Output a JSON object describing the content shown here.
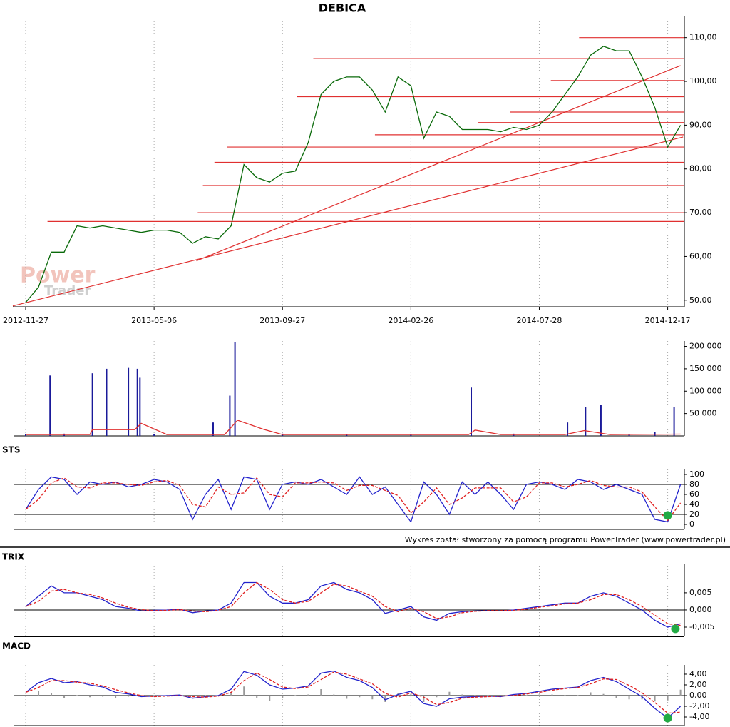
{
  "footer": "Wykres został stworzony za pomocą programu PowerTrader (www.powertrader.pl)",
  "watermark": [
    "Power",
    "Trader"
  ],
  "chart_data": [
    {
      "type": "line",
      "title": "DEBICA",
      "x": [
        0,
        10,
        20,
        30,
        40,
        50,
        60,
        70,
        80,
        90,
        100,
        110,
        120,
        130,
        140,
        150,
        160,
        170,
        180,
        190,
        200,
        210,
        220,
        230,
        240,
        250,
        260,
        270,
        280,
        290,
        300,
        310,
        320,
        330,
        340,
        350,
        360,
        370,
        380,
        390,
        400,
        410,
        420,
        430,
        440,
        450,
        460,
        470,
        480,
        490,
        500,
        510
      ],
      "xlim": [
        -10,
        513
      ],
      "xticks": [
        {
          "value": 0,
          "label": "2012-11-27"
        },
        {
          "value": 100,
          "label": "2013-05-06"
        },
        {
          "value": 200,
          "label": "2013-09-27"
        },
        {
          "value": 300,
          "label": "2014-02-26"
        },
        {
          "value": 400,
          "label": "2014-07-28"
        },
        {
          "value": 500,
          "label": "2014-12-17"
        }
      ],
      "ylim": [
        48.5,
        115
      ],
      "yticks": [
        {
          "value": 50,
          "label": "50,00"
        },
        {
          "value": 60,
          "label": "60,00"
        },
        {
          "value": 70,
          "label": "70,00"
        },
        {
          "value": 80,
          "label": "80,00"
        },
        {
          "value": 90,
          "label": "90,00"
        },
        {
          "value": 100,
          "label": "100,00"
        },
        {
          "value": 110,
          "label": "110,00"
        }
      ],
      "grid": true,
      "series": [
        {
          "color": "#0a6a0a",
          "values": [
            49.5,
            53,
            61,
            61,
            67,
            66.5,
            67,
            66.5,
            66,
            65.5,
            66,
            66,
            65.5,
            63,
            64.5,
            64,
            67,
            81,
            78,
            77,
            79,
            79.5,
            86,
            97,
            100,
            101,
            101,
            98,
            93,
            101,
            99,
            87,
            93,
            92,
            89,
            89,
            89,
            88.5,
            89.5,
            89,
            90,
            93,
            97,
            101,
            106,
            108,
            107,
            107,
            101,
            94,
            85,
            90
          ]
        }
      ],
      "level_color": "#e03030",
      "levels": [
        {
          "y": 110,
          "x": 431
        },
        {
          "y": 105.2,
          "x": 224
        },
        {
          "y": 100.2,
          "x": 409
        },
        {
          "y": 96.5,
          "x": 211
        },
        {
          "y": 93,
          "x": 377
        },
        {
          "y": 90.6,
          "x": 352
        },
        {
          "y": 87.8,
          "x": 272
        },
        {
          "y": 85,
          "x": 157
        },
        {
          "y": 81.5,
          "x": 147
        },
        {
          "y": 76.2,
          "x": 138
        },
        {
          "y": 70,
          "x": 134
        },
        {
          "y": 68,
          "x": 17
        }
      ],
      "trendlines": [
        {
          "x": [
            -10,
            512
          ],
          "y": [
            48.7,
            87.3
          ]
        },
        {
          "x": [
            133,
            510
          ],
          "y": [
            59,
            103.6
          ]
        }
      ]
    },
    {
      "type": "bar",
      "ylim": [
        0,
        212000
      ],
      "yticks": [
        {
          "value": 50000,
          "label": "50 000"
        },
        {
          "value": 100000,
          "label": "100 000"
        },
        {
          "value": 150000,
          "label": "150 000"
        },
        {
          "value": 200000,
          "label": "200 000"
        }
      ],
      "series": [
        {
          "style": "bar",
          "color": "#1a1a9a",
          "x": [
            0,
            19,
            30,
            52,
            63,
            80,
            87,
            89,
            100,
            146,
            159,
            163,
            200,
            250,
            300,
            347,
            380,
            422,
            436,
            448,
            470,
            490,
            505
          ],
          "values": [
            4000,
            135000,
            5000,
            140000,
            150000,
            152000,
            150000,
            130000,
            4000,
            30000,
            90000,
            210000,
            5000,
            4000,
            4000,
            108000,
            5000,
            30000,
            65000,
            70000,
            4000,
            8000,
            65000
          ]
        },
        {
          "style": "line",
          "color": "#e03030",
          "x": [
            0,
            50,
            52,
            85,
            90,
            110,
            155,
            165,
            185,
            200,
            345,
            350,
            370,
            420,
            435,
            455,
            510
          ],
          "values": [
            3000,
            3000,
            14000,
            14000,
            28000,
            3000,
            3000,
            35000,
            15000,
            3000,
            3000,
            13000,
            3000,
            3000,
            12000,
            3000,
            4000
          ]
        }
      ]
    },
    {
      "type": "line",
      "title": "STS",
      "x": [
        0,
        10,
        20,
        30,
        40,
        50,
        60,
        70,
        80,
        90,
        100,
        110,
        120,
        130,
        140,
        150,
        160,
        170,
        180,
        190,
        200,
        210,
        220,
        230,
        240,
        250,
        260,
        270,
        280,
        290,
        300,
        310,
        320,
        330,
        340,
        350,
        360,
        370,
        380,
        390,
        400,
        410,
        420,
        430,
        440,
        450,
        460,
        470,
        480,
        490,
        500,
        510
      ],
      "ylim": [
        -10,
        110
      ],
      "yticks": [
        0,
        20,
        40,
        60,
        80,
        100
      ],
      "hlines": [
        20,
        80
      ],
      "series": [
        {
          "style": "line",
          "color": "#2222cc",
          "values": [
            30,
            70,
            95,
            90,
            60,
            85,
            80,
            85,
            75,
            80,
            90,
            85,
            70,
            10,
            60,
            90,
            30,
            95,
            90,
            30,
            80,
            85,
            80,
            90,
            75,
            60,
            95,
            60,
            75,
            40,
            5,
            85,
            60,
            20,
            85,
            60,
            85,
            60,
            30,
            80,
            85,
            80,
            70,
            90,
            85,
            70,
            80,
            70,
            60,
            10,
            5,
            80
          ]
        },
        {
          "style": "dash",
          "color": "#e02020",
          "values": [
            30,
            50,
            83,
            93,
            75,
            73,
            83,
            83,
            80,
            78,
            85,
            88,
            78,
            40,
            35,
            75,
            60,
            63,
            93,
            60,
            55,
            83,
            83,
            85,
            83,
            68,
            78,
            78,
            68,
            58,
            23,
            45,
            73,
            40,
            53,
            73,
            73,
            73,
            45,
            55,
            83,
            83,
            75,
            80,
            88,
            78,
            75,
            75,
            65,
            35,
            8,
            43
          ]
        }
      ],
      "markers": [
        {
          "x": 500,
          "y": 18,
          "color": "#22aa44"
        }
      ]
    },
    {
      "type": "line",
      "title": "TRIX",
      "x": [
        0,
        10,
        20,
        30,
        40,
        50,
        60,
        70,
        80,
        90,
        100,
        110,
        120,
        130,
        140,
        150,
        160,
        170,
        180,
        190,
        200,
        210,
        220,
        230,
        240,
        250,
        260,
        270,
        280,
        290,
        300,
        310,
        320,
        330,
        340,
        350,
        360,
        370,
        380,
        390,
        400,
        410,
        420,
        430,
        440,
        450,
        460,
        470,
        480,
        490,
        500,
        510
      ],
      "ylim": [
        -0.0077,
        0.0135
      ],
      "yticks": [
        {
          "value": -0.005,
          "label": "-0,005"
        },
        {
          "value": 0,
          "label": "0,000"
        },
        {
          "value": 0.005,
          "label": "0,005"
        }
      ],
      "hlines": [
        0
      ],
      "series": [
        {
          "style": "line",
          "color": "#2222cc",
          "values": [
            0.001,
            0.004,
            0.007,
            0.005,
            0.005,
            0.004,
            0.003,
            0.001,
            0.0005,
            -0.0003,
            -0.0001,
            0,
            0.0002,
            -0.0008,
            -0.0003,
            0,
            0.002,
            0.008,
            0.008,
            0.004,
            0.002,
            0.002,
            0.003,
            0.007,
            0.008,
            0.006,
            0.005,
            0.003,
            -0.001,
            0,
            0.001,
            -0.002,
            -0.003,
            -0.001,
            -0.0005,
            -0.0003,
            -0.0002,
            -0.0003,
            0,
            0.0005,
            0.001,
            0.0015,
            0.002,
            0.002,
            0.004,
            0.005,
            0.004,
            0.002,
            0,
            -0.003,
            -0.005,
            -0.004
          ]
        },
        {
          "style": "dash",
          "color": "#e02020",
          "values": [
            0.001,
            0.0025,
            0.0055,
            0.006,
            0.005,
            0.0045,
            0.0035,
            0.002,
            0.0008,
            0.0001,
            -0.0002,
            -0.0001,
            0.0001,
            -0.0003,
            -0.0005,
            -0.0001,
            0.001,
            0.005,
            0.008,
            0.006,
            0.003,
            0.002,
            0.0025,
            0.005,
            0.0075,
            0.007,
            0.0055,
            0.004,
            0.001,
            -0.0005,
            0.0005,
            -0.0005,
            -0.0025,
            -0.002,
            -0.0008,
            -0.0004,
            -0.0002,
            -0.0002,
            -0.0001,
            0.0002,
            0.0008,
            0.0012,
            0.0018,
            0.002,
            0.003,
            0.0045,
            0.0045,
            0.003,
            0.001,
            -0.0015,
            -0.004,
            -0.0045
          ]
        }
      ],
      "markers": [
        {
          "x": 506,
          "y": -0.0055,
          "color": "#22aa44"
        }
      ]
    },
    {
      "type": "line",
      "title": "MACD",
      "x": [
        0,
        10,
        20,
        30,
        40,
        50,
        60,
        70,
        80,
        90,
        100,
        110,
        120,
        130,
        140,
        150,
        160,
        170,
        180,
        190,
        200,
        210,
        220,
        230,
        240,
        250,
        260,
        270,
        280,
        290,
        300,
        310,
        320,
        330,
        340,
        350,
        360,
        370,
        380,
        390,
        400,
        410,
        420,
        430,
        440,
        450,
        460,
        470,
        480,
        490,
        500,
        510
      ],
      "ylim": [
        -5.6,
        5.73
      ],
      "yticks": [
        {
          "value": -4,
          "label": "-4,00"
        },
        {
          "value": -2,
          "label": "-2,00"
        },
        {
          "value": 0,
          "label": "0,00"
        },
        {
          "value": 2,
          "label": "2,00"
        },
        {
          "value": 4,
          "label": "4,00"
        }
      ],
      "hlines": [
        0
      ],
      "series": [
        {
          "style": "bar",
          "color": "#999999",
          "values": [
            0,
            0.9,
            0.4,
            -0.4,
            0.1,
            -0.3,
            -0.2,
            -0.5,
            -0.2,
            -0.2,
            0.1,
            0.1,
            0.1,
            -0.3,
            0.1,
            0.1,
            0.6,
            1.7,
            -0.4,
            -1.0,
            -0.4,
            0.1,
            0.2,
            1.2,
            0.2,
            -0.6,
            -0.3,
            -0.7,
            -1.2,
            0.5,
            0.3,
            -1.2,
            -0.3,
            0.7,
            0.2,
            0.1,
            0.1,
            -0.1,
            0.2,
            0.1,
            0.2,
            0.2,
            0.1,
            0.1,
            0.6,
            0.3,
            -0.4,
            -0.7,
            -0.7,
            -1.1,
            -0.9,
            1.1
          ]
        },
        {
          "style": "line",
          "color": "#2222cc",
          "values": [
            0.6,
            2.4,
            3.2,
            2.4,
            2.6,
            2.0,
            1.6,
            0.6,
            0.3,
            -0.2,
            -0.1,
            0,
            0.1,
            -0.5,
            -0.2,
            0,
            1.2,
            4.5,
            3.8,
            2.0,
            1.2,
            1.4,
            1.8,
            4.2,
            4.6,
            3.4,
            2.8,
            1.5,
            -0.8,
            0.2,
            0.8,
            -1.5,
            -2.0,
            -0.6,
            -0.3,
            -0.2,
            -0.1,
            -0.2,
            0.2,
            0.4,
            0.8,
            1.2,
            1.4,
            1.6,
            2.8,
            3.4,
            2.6,
            1.2,
            -0.2,
            -2.4,
            -4.2,
            -2.0
          ]
        },
        {
          "style": "dash",
          "color": "#e02020",
          "values": [
            0.6,
            1.5,
            2.8,
            2.8,
            2.5,
            2.3,
            1.8,
            1.1,
            0.5,
            0,
            -0.2,
            -0.1,
            0,
            -0.2,
            -0.3,
            -0.1,
            0.6,
            2.8,
            4.2,
            3.0,
            1.6,
            1.3,
            1.6,
            3.0,
            4.4,
            4.0,
            3.1,
            2.2,
            0.4,
            -0.3,
            0.5,
            -0.3,
            -1.7,
            -1.3,
            -0.5,
            -0.3,
            -0.2,
            -0.1,
            0,
            0.3,
            0.6,
            1.0,
            1.3,
            1.5,
            2.2,
            3.1,
            3.0,
            1.9,
            0.5,
            -1.3,
            -3.3,
            -3.1
          ]
        }
      ],
      "markers": [
        {
          "x": 500,
          "y": -4.2,
          "color": "#22aa44"
        }
      ]
    }
  ]
}
